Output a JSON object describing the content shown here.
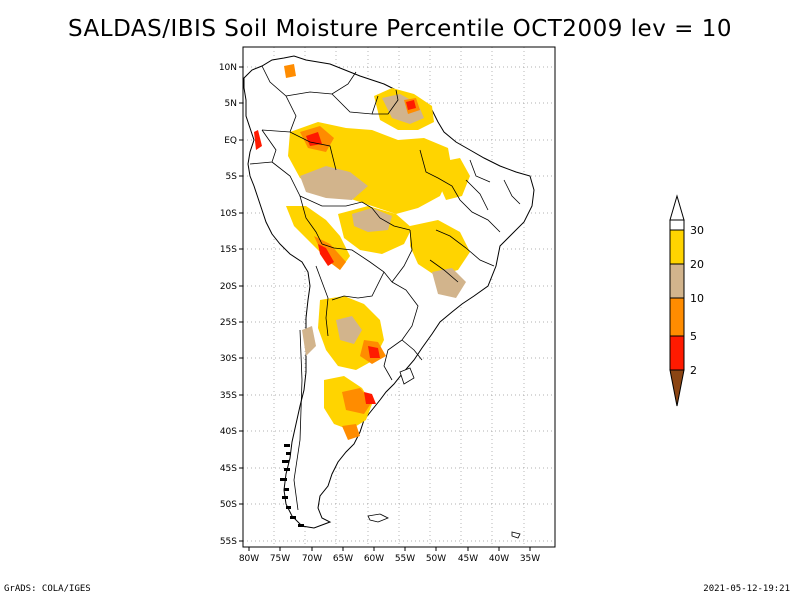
{
  "title": "SALDAS/IBIS Soil Moisture Percentile OCT2009 lev = 10",
  "footer_left": "GrADS: COLA/IGES",
  "footer_right": "2021-05-12-19:21",
  "map": {
    "lon_ticks": [
      "80W",
      "75W",
      "70W",
      "65W",
      "60W",
      "55W",
      "50W",
      "45W",
      "40W",
      "35W"
    ],
    "lat_ticks": [
      "10N",
      "5N",
      "EQ",
      "5S",
      "10S",
      "15S",
      "20S",
      "25S",
      "30S",
      "35S",
      "40S",
      "45S",
      "50S",
      "55S"
    ],
    "colors": {
      "land": "#ffffff",
      "gridline": "#999999",
      "coast": "#000000"
    }
  },
  "legend": {
    "labels": [
      "30",
      "20",
      "10",
      "5",
      "2"
    ],
    "colors": {
      "above_30": "#ffffff",
      "20_30": "#ffd400",
      "10_20": "#d2b48c",
      "5_10": "#ff8c00",
      "2_5": "#ff1a00",
      "below_2": "#8b4513"
    }
  }
}
